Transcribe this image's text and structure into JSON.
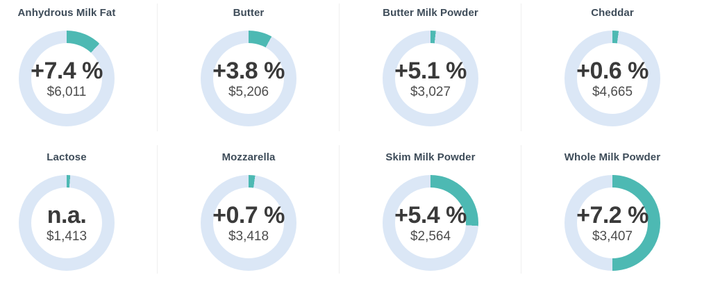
{
  "colors": {
    "arc": "#4db9b3",
    "track": "#dbe7f6",
    "title": "#3e4c59",
    "percent_text": "#3a3a3a",
    "price_text": "#4d4d4d",
    "divider": "#efefef"
  },
  "chart_data": {
    "type": "pie",
    "subtype": "donut-kpi-grid",
    "legend_position": "none",
    "items": [
      {
        "title": "Anhydrous Milk Fat",
        "change_label": "+7.4 %",
        "change_pct": 7.4,
        "price_label": "$6,011",
        "price_usd": 6011,
        "arc_fraction": 0.12
      },
      {
        "title": "Butter",
        "change_label": "+3.8 %",
        "change_pct": 3.8,
        "price_label": "$5,206",
        "price_usd": 5206,
        "arc_fraction": 0.08
      },
      {
        "title": "Butter Milk Powder",
        "change_label": "+5.1 %",
        "change_pct": 5.1,
        "price_label": "$3,027",
        "price_usd": 3027,
        "arc_fraction": 0.018
      },
      {
        "title": "Cheddar",
        "change_label": "+0.6 %",
        "change_pct": 0.6,
        "price_label": "$4,665",
        "price_usd": 4665,
        "arc_fraction": 0.021
      },
      {
        "title": "Lactose",
        "change_label": "n.a.",
        "change_pct": null,
        "price_label": "$1,413",
        "price_usd": 1413,
        "arc_fraction": 0.012
      },
      {
        "title": "Mozzarella",
        "change_label": "+0.7 %",
        "change_pct": 0.7,
        "price_label": "$3,418",
        "price_usd": 3418,
        "arc_fraction": 0.022
      },
      {
        "title": "Skim Milk Powder",
        "change_label": "+5.4 %",
        "change_pct": 5.4,
        "price_label": "$2,564",
        "price_usd": 2564,
        "arc_fraction": 0.26
      },
      {
        "title": "Whole Milk Powder",
        "change_label": "+7.2 %",
        "change_pct": 7.2,
        "price_label": "$3,407",
        "price_usd": 3407,
        "arc_fraction": 0.5
      }
    ]
  }
}
